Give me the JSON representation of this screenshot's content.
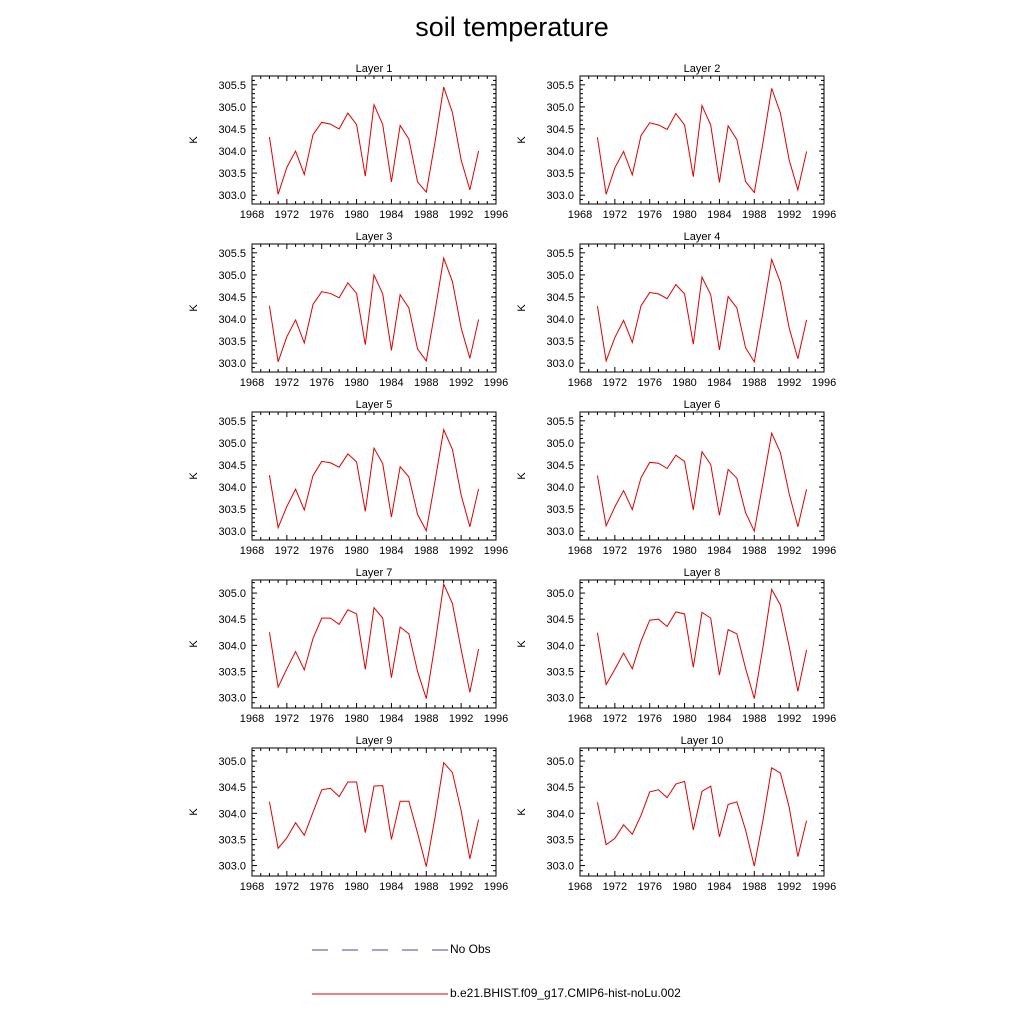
{
  "title": "soil temperature",
  "legend": {
    "entries": [
      {
        "label": "No Obs",
        "color": "#4a4aa8",
        "style": "dashed"
      },
      {
        "label": "b.e21.BHIST.f09_g17.CMIP6-hist-noLu.002",
        "color": "#e00000",
        "style": "solid"
      }
    ]
  },
  "chart_data": [
    {
      "type": "line",
      "title": "Layer 1",
      "ylabel": "K",
      "xlim": [
        1968,
        1996
      ],
      "ylim": [
        302.8,
        305.7
      ],
      "xticks": [
        "1968",
        "1972",
        "1976",
        "1980",
        "1984",
        "1988",
        "1992",
        "1996"
      ],
      "yticks": [
        "303.0",
        "303.5",
        "304.0",
        "304.5",
        "305.0",
        "305.5"
      ],
      "x": [
        1970,
        1971,
        1972,
        1973,
        1974,
        1975,
        1976,
        1977,
        1978,
        1979,
        1980,
        1981,
        1982,
        1983,
        1984,
        1985,
        1986,
        1987,
        1988,
        1989,
        1990,
        1991,
        1992,
        1993,
        1994
      ],
      "series": [
        {
          "name": "b.e21.BHIST.f09_g17.CMIP6-hist-noLu.002",
          "color": "#e00000",
          "values": [
            304.32,
            303.02,
            303.63,
            304.0,
            303.47,
            304.37,
            304.65,
            304.61,
            304.5,
            304.86,
            304.6,
            303.43,
            305.05,
            304.6,
            303.3,
            304.58,
            304.27,
            303.3,
            303.07,
            304.2,
            305.45,
            304.87,
            303.8,
            303.12,
            304.0
          ]
        }
      ]
    },
    {
      "type": "line",
      "title": "Layer 2",
      "ylabel": "K",
      "xlim": [
        1968,
        1996
      ],
      "ylim": [
        302.8,
        305.7
      ],
      "xticks": [
        "1968",
        "1972",
        "1976",
        "1980",
        "1984",
        "1988",
        "1992",
        "1996"
      ],
      "yticks": [
        "303.0",
        "303.5",
        "304.0",
        "304.5",
        "305.0",
        "305.5"
      ],
      "x": [
        1970,
        1971,
        1972,
        1973,
        1974,
        1975,
        1976,
        1977,
        1978,
        1979,
        1980,
        1981,
        1982,
        1983,
        1984,
        1985,
        1986,
        1987,
        1988,
        1989,
        1990,
        1991,
        1992,
        1993,
        1994
      ],
      "series": [
        {
          "name": "b.e21.BHIST.f09_g17.CMIP6-hist-noLu.002",
          "color": "#e00000",
          "values": [
            304.31,
            303.02,
            303.62,
            303.99,
            303.46,
            304.35,
            304.64,
            304.59,
            304.49,
            304.85,
            304.59,
            303.42,
            305.03,
            304.59,
            303.29,
            304.57,
            304.26,
            303.31,
            303.06,
            304.19,
            305.42,
            304.86,
            303.8,
            303.12,
            303.99
          ]
        }
      ]
    },
    {
      "type": "line",
      "title": "Layer 3",
      "ylabel": "K",
      "xlim": [
        1968,
        1996
      ],
      "ylim": [
        302.8,
        305.7
      ],
      "xticks": [
        "1968",
        "1972",
        "1976",
        "1980",
        "1984",
        "1988",
        "1992",
        "1996"
      ],
      "yticks": [
        "303.0",
        "303.5",
        "304.0",
        "304.5",
        "305.0",
        "305.5"
      ],
      "x": [
        1970,
        1971,
        1972,
        1973,
        1974,
        1975,
        1976,
        1977,
        1978,
        1979,
        1980,
        1981,
        1982,
        1983,
        1984,
        1985,
        1986,
        1987,
        1988,
        1989,
        1990,
        1991,
        1992,
        1993,
        1994
      ],
      "series": [
        {
          "name": "b.e21.BHIST.f09_g17.CMIP6-hist-noLu.002",
          "color": "#e00000",
          "values": [
            304.3,
            303.03,
            303.6,
            303.98,
            303.46,
            304.33,
            304.62,
            304.58,
            304.48,
            304.82,
            304.58,
            303.42,
            305.0,
            304.57,
            303.29,
            304.55,
            304.25,
            303.32,
            303.05,
            304.18,
            305.38,
            304.85,
            303.8,
            303.11,
            303.99
          ]
        }
      ]
    },
    {
      "type": "line",
      "title": "Layer 4",
      "ylabel": "K",
      "xlim": [
        1968,
        1996
      ],
      "ylim": [
        302.8,
        305.7
      ],
      "xticks": [
        "1968",
        "1972",
        "1976",
        "1980",
        "1984",
        "1988",
        "1992",
        "1996"
      ],
      "yticks": [
        "303.0",
        "303.5",
        "304.0",
        "304.5",
        "305.0",
        "305.5"
      ],
      "x": [
        1970,
        1971,
        1972,
        1973,
        1974,
        1975,
        1976,
        1977,
        1978,
        1979,
        1980,
        1981,
        1982,
        1983,
        1984,
        1985,
        1986,
        1987,
        1988,
        1989,
        1990,
        1991,
        1992,
        1993,
        1994
      ],
      "series": [
        {
          "name": "b.e21.BHIST.f09_g17.CMIP6-hist-noLu.002",
          "color": "#e00000",
          "values": [
            304.29,
            303.05,
            303.58,
            303.97,
            303.47,
            304.3,
            304.6,
            304.57,
            304.46,
            304.78,
            304.57,
            303.43,
            304.95,
            304.55,
            303.3,
            304.51,
            304.25,
            303.35,
            303.03,
            304.16,
            305.35,
            304.83,
            303.8,
            303.1,
            303.98
          ]
        }
      ]
    },
    {
      "type": "line",
      "title": "Layer 5",
      "ylabel": "K",
      "xlim": [
        1968,
        1996
      ],
      "ylim": [
        302.8,
        305.7
      ],
      "xticks": [
        "1968",
        "1972",
        "1976",
        "1980",
        "1984",
        "1988",
        "1992",
        "1996"
      ],
      "yticks": [
        "303.0",
        "303.5",
        "304.0",
        "304.5",
        "305.0",
        "305.5"
      ],
      "x": [
        1970,
        1971,
        1972,
        1973,
        1974,
        1975,
        1976,
        1977,
        1978,
        1979,
        1980,
        1981,
        1982,
        1983,
        1984,
        1985,
        1986,
        1987,
        1988,
        1989,
        1990,
        1991,
        1992,
        1993,
        1994
      ],
      "series": [
        {
          "name": "b.e21.BHIST.f09_g17.CMIP6-hist-noLu.002",
          "color": "#e00000",
          "values": [
            304.27,
            303.08,
            303.56,
            303.95,
            303.48,
            304.26,
            304.58,
            304.55,
            304.45,
            304.75,
            304.57,
            303.45,
            304.88,
            304.53,
            303.32,
            304.46,
            304.23,
            303.38,
            303.01,
            304.13,
            305.3,
            304.85,
            303.82,
            303.1,
            303.96
          ]
        }
      ]
    },
    {
      "type": "line",
      "title": "Layer 6",
      "ylabel": "K",
      "xlim": [
        1968,
        1996
      ],
      "ylim": [
        302.8,
        305.7
      ],
      "xticks": [
        "1968",
        "1972",
        "1976",
        "1980",
        "1984",
        "1988",
        "1992",
        "1996"
      ],
      "yticks": [
        "303.0",
        "303.5",
        "304.0",
        "304.5",
        "305.0",
        "305.5"
      ],
      "x": [
        1970,
        1971,
        1972,
        1973,
        1974,
        1975,
        1976,
        1977,
        1978,
        1979,
        1980,
        1981,
        1982,
        1983,
        1984,
        1985,
        1986,
        1987,
        1988,
        1989,
        1990,
        1991,
        1992,
        1993,
        1994
      ],
      "series": [
        {
          "name": "b.e21.BHIST.f09_g17.CMIP6-hist-noLu.002",
          "color": "#e00000",
          "values": [
            304.26,
            303.12,
            303.55,
            303.92,
            303.49,
            304.21,
            304.56,
            304.54,
            304.42,
            304.72,
            304.58,
            303.48,
            304.8,
            304.51,
            303.36,
            304.4,
            304.2,
            303.42,
            303.0,
            304.1,
            305.22,
            304.78,
            303.85,
            303.1,
            303.95
          ]
        }
      ]
    },
    {
      "type": "line",
      "title": "Layer 7",
      "ylabel": "K",
      "xlim": [
        1968,
        1996
      ],
      "ylim": [
        302.8,
        305.25
      ],
      "xticks": [
        "1968",
        "1972",
        "1976",
        "1980",
        "1984",
        "1988",
        "1992",
        "1996"
      ],
      "yticks": [
        "303.0",
        "303.5",
        "304.0",
        "304.5",
        "305.0"
      ],
      "x": [
        1970,
        1971,
        1972,
        1973,
        1974,
        1975,
        1976,
        1977,
        1978,
        1979,
        1980,
        1981,
        1982,
        1983,
        1984,
        1985,
        1986,
        1987,
        1988,
        1989,
        1990,
        1991,
        1992,
        1993,
        1994
      ],
      "series": [
        {
          "name": "b.e21.BHIST.f09_g17.CMIP6-hist-noLu.002",
          "color": "#e00000",
          "values": [
            304.25,
            303.2,
            303.55,
            303.88,
            303.53,
            304.13,
            304.52,
            304.52,
            304.4,
            304.68,
            304.6,
            303.54,
            304.72,
            304.52,
            303.38,
            304.35,
            304.22,
            303.5,
            302.98,
            304.02,
            305.17,
            304.8,
            303.92,
            303.1,
            303.93
          ]
        }
      ]
    },
    {
      "type": "line",
      "title": "Layer 8",
      "ylabel": "K",
      "xlim": [
        1968,
        1996
      ],
      "ylim": [
        302.8,
        305.25
      ],
      "xticks": [
        "1968",
        "1972",
        "1976",
        "1980",
        "1984",
        "1988",
        "1992",
        "1996"
      ],
      "yticks": [
        "303.0",
        "303.5",
        "304.0",
        "304.5",
        "305.0"
      ],
      "x": [
        1970,
        1971,
        1972,
        1973,
        1974,
        1975,
        1976,
        1977,
        1978,
        1979,
        1980,
        1981,
        1982,
        1983,
        1984,
        1985,
        1986,
        1987,
        1988,
        1989,
        1990,
        1991,
        1992,
        1993,
        1994
      ],
      "series": [
        {
          "name": "b.e21.BHIST.f09_g17.CMIP6-hist-noLu.002",
          "color": "#e00000",
          "values": [
            304.24,
            303.25,
            303.54,
            303.85,
            303.55,
            304.08,
            304.48,
            304.5,
            304.36,
            304.64,
            304.6,
            303.58,
            304.63,
            304.52,
            303.43,
            304.3,
            304.22,
            303.56,
            302.98,
            303.97,
            305.07,
            304.77,
            303.98,
            303.12,
            303.91
          ]
        }
      ]
    },
    {
      "type": "line",
      "title": "Layer 9",
      "ylabel": "K",
      "xlim": [
        1968,
        1996
      ],
      "ylim": [
        302.8,
        305.25
      ],
      "xticks": [
        "1968",
        "1972",
        "1976",
        "1980",
        "1984",
        "1988",
        "1992",
        "1996"
      ],
      "yticks": [
        "303.0",
        "303.5",
        "304.0",
        "304.5",
        "305.0"
      ],
      "x": [
        1970,
        1971,
        1972,
        1973,
        1974,
        1975,
        1976,
        1977,
        1978,
        1979,
        1980,
        1981,
        1982,
        1983,
        1984,
        1985,
        1986,
        1987,
        1988,
        1989,
        1990,
        1991,
        1992,
        1993,
        1994
      ],
      "series": [
        {
          "name": "b.e21.BHIST.f09_g17.CMIP6-hist-noLu.002",
          "color": "#e00000",
          "values": [
            304.22,
            303.33,
            303.53,
            303.82,
            303.58,
            304.02,
            304.45,
            304.48,
            304.32,
            304.6,
            304.6,
            303.63,
            304.52,
            304.53,
            303.5,
            304.23,
            304.23,
            303.62,
            302.98,
            303.92,
            304.97,
            304.78,
            304.05,
            303.13,
            303.88
          ]
        }
      ]
    },
    {
      "type": "line",
      "title": "Layer 10",
      "ylabel": "K",
      "xlim": [
        1968,
        1996
      ],
      "ylim": [
        302.8,
        305.25
      ],
      "xticks": [
        "1968",
        "1972",
        "1976",
        "1980",
        "1984",
        "1988",
        "1992",
        "1996"
      ],
      "yticks": [
        "303.0",
        "303.5",
        "304.0",
        "304.5",
        "305.0"
      ],
      "x": [
        1970,
        1971,
        1972,
        1973,
        1974,
        1975,
        1976,
        1977,
        1978,
        1979,
        1980,
        1981,
        1982,
        1983,
        1984,
        1985,
        1986,
        1987,
        1988,
        1989,
        1990,
        1991,
        1992,
        1993,
        1994
      ],
      "series": [
        {
          "name": "b.e21.BHIST.f09_g17.CMIP6-hist-noLu.002",
          "color": "#e00000",
          "values": [
            304.21,
            303.4,
            303.52,
            303.78,
            303.6,
            303.96,
            304.41,
            304.45,
            304.3,
            304.56,
            304.61,
            303.68,
            304.42,
            304.52,
            303.55,
            304.17,
            304.22,
            303.68,
            302.99,
            303.87,
            304.87,
            304.77,
            304.12,
            303.17,
            303.86
          ]
        }
      ]
    }
  ]
}
